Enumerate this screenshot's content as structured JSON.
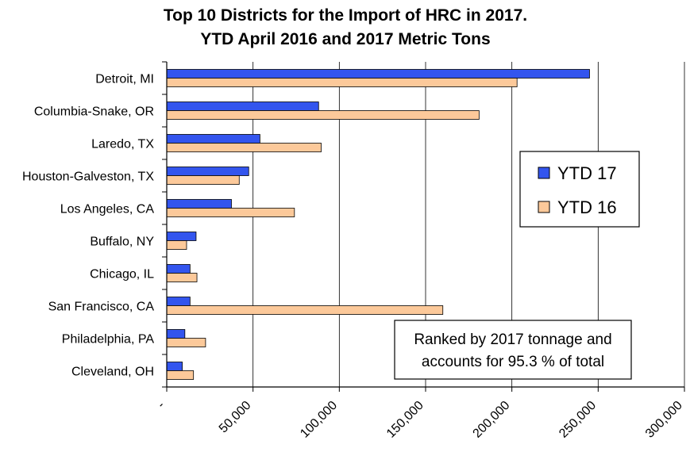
{
  "chart_data": {
    "type": "bar",
    "orientation": "horizontal",
    "title_lines": [
      "Top 10 Districts for the Import of HRC in 2017.",
      "YTD April 2016 and 2017 Metric Tons"
    ],
    "categories": [
      "Detroit, MI",
      "Columbia-Snake, OR",
      "Laredo, TX",
      "Houston-Galveston, TX",
      "Los Angeles, CA",
      "Buffalo, NY",
      "Chicago, IL",
      "San Francisco, CA",
      "Philadelphia, PA",
      "Cleveland, OH"
    ],
    "series": [
      {
        "name": "YTD 17",
        "color": "#3355ee",
        "values": [
          245000,
          88000,
          54000,
          47500,
          37500,
          17000,
          13500,
          13500,
          10500,
          9000
        ]
      },
      {
        "name": "YTD 16",
        "color": "#fcc99a",
        "values": [
          203000,
          181000,
          89500,
          42000,
          74000,
          11500,
          17500,
          160000,
          22500,
          15500
        ]
      }
    ],
    "xlim": [
      0,
      300000
    ],
    "x_ticks": [
      {
        "value": 0,
        "label": "-"
      },
      {
        "value": 50000,
        "label": "50,000"
      },
      {
        "value": 100000,
        "label": "100,000"
      },
      {
        "value": 150000,
        "label": "150,000"
      },
      {
        "value": 200000,
        "label": "200,000"
      },
      {
        "value": 250000,
        "label": "250,000"
      },
      {
        "value": 300000,
        "label": "300,000"
      }
    ],
    "grid": true,
    "legend_position": "right",
    "annotation_lines": [
      "Ranked by 2017 tonnage and",
      "accounts for 95.3 % of total"
    ]
  }
}
